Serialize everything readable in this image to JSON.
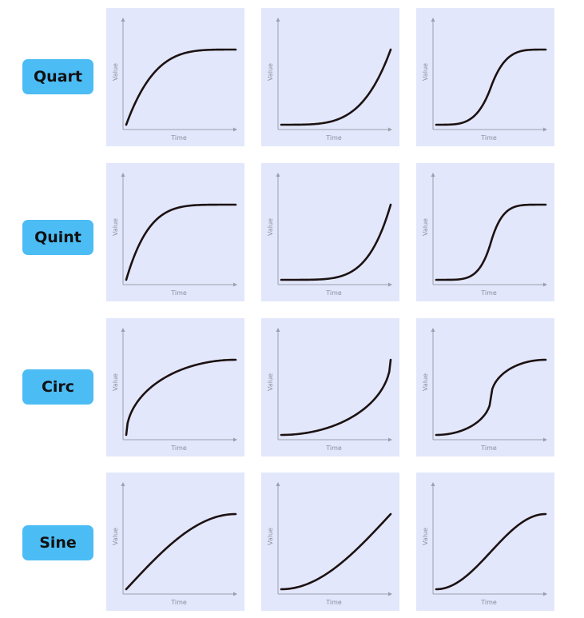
{
  "axis_labels": {
    "x": "Time",
    "y": "Value"
  },
  "colors": {
    "badge": "#4cbcf5",
    "panel": "#e3e7fb",
    "curve": "#1c1212",
    "axis": "#9aa0ad"
  },
  "rows": [
    {
      "label": "Quart",
      "curves": [
        "easeOut",
        "easeIn",
        "easeInOut"
      ]
    },
    {
      "label": "Quint",
      "curves": [
        "easeOut",
        "easeIn",
        "easeInOut"
      ]
    },
    {
      "label": "Circ",
      "curves": [
        "easeOut",
        "easeIn",
        "easeInOut"
      ]
    },
    {
      "label": "Sine",
      "curves": [
        "easeOut",
        "easeIn",
        "easeInOut"
      ]
    }
  ]
}
